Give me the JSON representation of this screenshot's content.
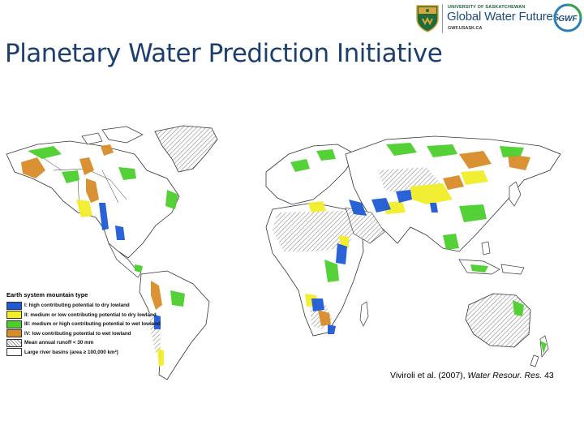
{
  "header": {
    "title": "Planetary Water Prediction Initiative"
  },
  "logo": {
    "university": "UNIVERSITY OF SASKATCHEWAN",
    "name": "Global Water Futures",
    "url": "GWF.USASK.CA",
    "badge": "GWF",
    "colors": {
      "shield_green": "#1e6b3c",
      "shield_gold": "#d8a63a",
      "badge_blue": "#2a7fb8",
      "badge_green": "#3aa24a"
    }
  },
  "legend": {
    "title": "Earth system mountain type",
    "items": [
      {
        "label": "I: high contributing potential to dry lowland",
        "color": "#1f5ad6"
      },
      {
        "label": "II: medium or low contributing potential to dry lowland",
        "color": "#f2ee2a"
      },
      {
        "label": "III: medium or high contributing potential to wet lowland",
        "color": "#4ccf2e"
      },
      {
        "label": "IV: low contributing potential to wet lowland",
        "color": "#d98c2a"
      },
      {
        "label": "Mean annual runoff < 30 mm",
        "color": "hatch"
      },
      {
        "label": "Large river basins (area ≥ 100,000 km²)",
        "color": "#ffffff"
      }
    ]
  },
  "citation": {
    "authors": "Viviroli et al. (2007),",
    "journal": "Water Resour. Res.",
    "volume": "43"
  },
  "map": {
    "type": "world choropleth of mountain types",
    "colors": {
      "outline": "#333333",
      "hatch": "#8a8a8a"
    }
  }
}
